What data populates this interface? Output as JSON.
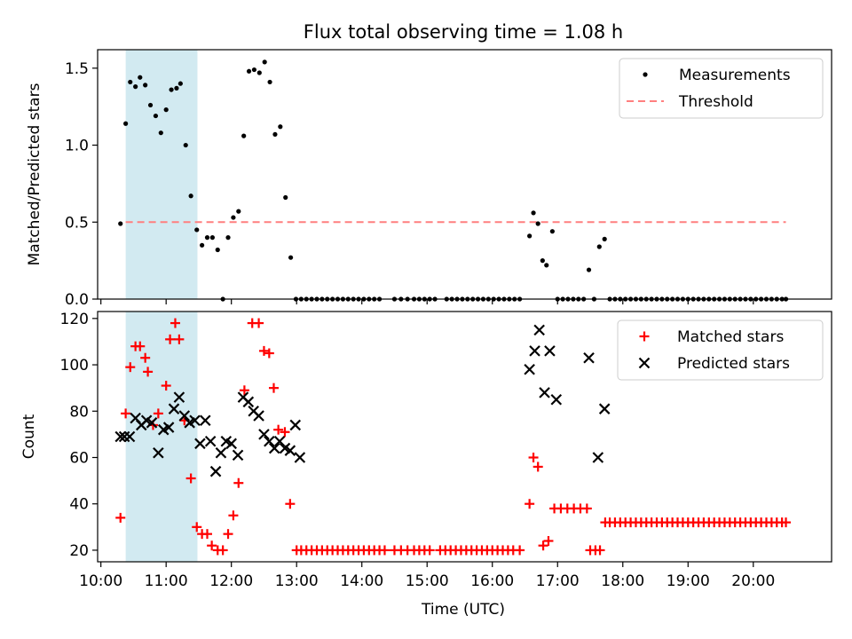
{
  "title": "Flux total observing time = 1.08 h",
  "colors": {
    "band": "#add8e6",
    "threshold": "#ff7f7f",
    "matched": "#ff0000",
    "predicted": "#000000",
    "measure": "#000000"
  },
  "chart_data": [
    {
      "type": "scatter",
      "panel": "top",
      "ylabel": "Matched/Predicted stars",
      "xlim": [
        9.95,
        21.2
      ],
      "ylim": [
        0,
        1.62
      ],
      "yticks": [
        0.0,
        0.5,
        1.0,
        1.5
      ],
      "ytick_labels": [
        "0.0",
        "0.5",
        "1.0",
        "1.5"
      ],
      "span": [
        10.38,
        11.48
      ],
      "threshold": {
        "y": 0.5,
        "x": [
          10.38,
          20.5
        ],
        "label": "Threshold"
      },
      "legend": {
        "position": "top-right",
        "entries": [
          "Measurements",
          "Threshold"
        ]
      },
      "series": [
        {
          "name": "Measurements",
          "x": [
            10.3,
            10.38,
            10.45,
            10.53,
            10.6,
            10.68,
            10.76,
            10.84,
            10.92,
            11.0,
            11.08,
            11.16,
            11.22,
            11.3,
            11.38,
            11.47,
            11.55,
            11.63,
            11.71,
            11.79,
            11.87,
            11.95,
            12.03,
            12.11,
            12.19,
            12.27,
            12.35,
            12.43,
            12.51,
            12.59,
            12.67,
            12.75,
            12.83,
            12.91,
            12.99,
            13.07,
            13.15,
            13.23,
            13.31,
            13.39,
            13.47,
            13.55,
            13.63,
            13.71,
            13.79,
            13.87,
            13.95,
            14.03,
            14.11,
            14.19,
            14.27,
            14.5,
            14.6,
            14.7,
            14.8,
            14.88,
            14.96,
            15.04,
            15.12,
            15.3,
            15.38,
            15.46,
            15.54,
            15.62,
            15.7,
            15.78,
            15.86,
            15.94,
            16.02,
            16.1,
            16.18,
            16.26,
            16.34,
            16.42,
            16.57,
            16.63,
            16.7,
            16.77,
            16.83,
            16.92,
            17.0,
            17.08,
            17.16,
            17.24,
            17.32,
            17.4,
            17.48,
            17.56,
            17.64,
            17.72,
            17.8,
            17.88,
            17.96,
            18.04,
            18.12,
            18.2,
            18.28,
            18.36,
            18.44,
            18.52,
            18.6,
            18.68,
            18.76,
            18.84,
            18.92,
            19.0,
            19.08,
            19.16,
            19.24,
            19.32,
            19.4,
            19.48,
            19.56,
            19.64,
            19.72,
            19.8,
            19.88,
            19.96,
            20.04,
            20.12,
            20.2,
            20.28,
            20.36,
            20.44,
            20.5
          ],
          "y": [
            0.49,
            1.14,
            1.41,
            1.38,
            1.44,
            1.39,
            1.26,
            1.19,
            1.08,
            1.23,
            1.36,
            1.37,
            1.4,
            1.0,
            0.67,
            0.45,
            0.35,
            0.4,
            0.4,
            0.32,
            0.0,
            0.4,
            0.53,
            0.57,
            1.06,
            1.48,
            1.49,
            1.47,
            1.54,
            1.41,
            1.07,
            1.12,
            0.66,
            0.27,
            0.0,
            0.0,
            0.0,
            0.0,
            0.0,
            0.0,
            0.0,
            0.0,
            0.0,
            0.0,
            0.0,
            0.0,
            0.0,
            0.0,
            0.0,
            0.0,
            0.0,
            0.0,
            0.0,
            0.0,
            0.0,
            0.0,
            0.0,
            0.0,
            0.0,
            0.0,
            0.0,
            0.0,
            0.0,
            0.0,
            0.0,
            0.0,
            0.0,
            0.0,
            0.0,
            0.0,
            0.0,
            0.0,
            0.0,
            0.0,
            0.41,
            0.56,
            0.49,
            0.25,
            0.22,
            0.44,
            0.0,
            0.0,
            0.0,
            0.0,
            0.0,
            0.0,
            0.19,
            0.0,
            0.34,
            0.39,
            0.0,
            0.0,
            0.0,
            0.0,
            0.0,
            0.0,
            0.0,
            0.0,
            0.0,
            0.0,
            0.0,
            0.0,
            0.0,
            0.0,
            0.0,
            0.0,
            0.0,
            0.0,
            0.0,
            0.0,
            0.0,
            0.0,
            0.0,
            0.0,
            0.0,
            0.0,
            0.0,
            0.0,
            0.0,
            0.0,
            0.0,
            0.0,
            0.0,
            0.0,
            0.0
          ]
        }
      ]
    },
    {
      "type": "scatter",
      "panel": "bottom",
      "xlabel": "Time (UTC)",
      "ylabel": "Count",
      "xlim": [
        9.95,
        21.2
      ],
      "ylim": [
        15,
        123
      ],
      "yticks": [
        20,
        40,
        60,
        80,
        100,
        120
      ],
      "ytick_labels": [
        "20",
        "40",
        "60",
        "80",
        "100",
        "120"
      ],
      "xticks": [
        10,
        11,
        12,
        13,
        14,
        15,
        16,
        17,
        18,
        19,
        20
      ],
      "xtick_labels": [
        "10:00",
        "11:00",
        "12:00",
        "13:00",
        "14:00",
        "15:00",
        "16:00",
        "17:00",
        "18:00",
        "19:00",
        "20:00"
      ],
      "span": [
        10.38,
        11.48
      ],
      "legend": {
        "position": "top-right",
        "entries": [
          "Matched stars",
          "Predicted stars"
        ]
      },
      "series": [
        {
          "name": "Matched stars",
          "x": [
            10.3,
            10.38,
            10.45,
            10.53,
            10.6,
            10.68,
            10.72,
            10.8,
            10.88,
            11.0,
            11.06,
            11.14,
            11.2,
            11.28,
            11.38,
            11.47,
            11.55,
            11.63,
            11.7,
            11.79,
            11.87,
            11.95,
            12.03,
            12.11,
            12.2,
            12.32,
            12.42,
            12.5,
            12.58,
            12.65,
            12.72,
            12.82,
            12.9,
            13.0,
            13.07,
            13.15,
            13.23,
            13.31,
            13.39,
            13.47,
            13.55,
            13.63,
            13.71,
            13.79,
            13.87,
            13.95,
            14.03,
            14.11,
            14.19,
            14.27,
            14.35,
            14.5,
            14.6,
            14.7,
            14.8,
            14.88,
            14.96,
            15.04,
            15.2,
            15.28,
            15.36,
            15.44,
            15.52,
            15.6,
            15.68,
            15.76,
            15.84,
            15.92,
            16.0,
            16.08,
            16.16,
            16.24,
            16.32,
            16.42,
            16.57,
            16.63,
            16.7,
            16.78,
            16.86,
            16.95,
            17.05,
            17.15,
            17.25,
            17.35,
            17.45,
            17.5,
            17.58,
            17.65,
            17.73,
            17.8,
            17.88,
            17.96,
            18.04,
            18.12,
            18.2,
            18.28,
            18.36,
            18.44,
            18.52,
            18.6,
            18.68,
            18.76,
            18.84,
            18.92,
            19.0,
            19.08,
            19.16,
            19.24,
            19.32,
            19.4,
            19.48,
            19.56,
            19.64,
            19.72,
            19.8,
            19.88,
            19.96,
            20.04,
            20.12,
            20.2,
            20.28,
            20.36,
            20.44,
            20.5
          ],
          "y": [
            34,
            79,
            99,
            108,
            108,
            103,
            97,
            74,
            79,
            91,
            111,
            118,
            111,
            76,
            51,
            30,
            27,
            27,
            22,
            20,
            20,
            27,
            35,
            49,
            89,
            118,
            118,
            106,
            105,
            90,
            72,
            71,
            40,
            20,
            20,
            20,
            20,
            20,
            20,
            20,
            20,
            20,
            20,
            20,
            20,
            20,
            20,
            20,
            20,
            20,
            20,
            20,
            20,
            20,
            20,
            20,
            20,
            20,
            20,
            20,
            20,
            20,
            20,
            20,
            20,
            20,
            20,
            20,
            20,
            20,
            20,
            20,
            20,
            20,
            40,
            60,
            56,
            22,
            24,
            38,
            38,
            38,
            38,
            38,
            38,
            20,
            20,
            20,
            32,
            32,
            32,
            32,
            32,
            32,
            32,
            32,
            32,
            32,
            32,
            32,
            32,
            32,
            32,
            32,
            32,
            32,
            32,
            32,
            32,
            32,
            32,
            32,
            32,
            32,
            32,
            32,
            32,
            32,
            32,
            32,
            32,
            32,
            32,
            32
          ]
        },
        {
          "name": "Predicted stars",
          "x": [
            10.3,
            10.36,
            10.44,
            10.53,
            10.62,
            10.7,
            10.78,
            10.88,
            10.96,
            11.04,
            11.12,
            11.2,
            11.28,
            11.36,
            11.44,
            11.52,
            11.6,
            11.68,
            11.76,
            11.84,
            11.92,
            12.0,
            12.1,
            12.18,
            12.26,
            12.34,
            12.42,
            12.5,
            12.58,
            12.66,
            12.74,
            12.82,
            12.9,
            12.98,
            13.05,
            16.57,
            16.65,
            16.72,
            16.8,
            16.88,
            16.98,
            17.48,
            17.62,
            17.72
          ],
          "y": [
            69,
            69,
            69,
            77,
            74,
            76,
            75,
            62,
            72,
            73,
            81,
            86,
            78,
            75,
            76,
            66,
            76,
            67,
            54,
            62,
            67,
            66,
            61,
            86,
            84,
            80,
            78,
            70,
            67,
            64,
            67,
            64,
            63,
            74,
            60,
            98,
            106,
            115,
            88,
            106,
            85,
            103,
            60,
            81
          ]
        }
      ]
    }
  ]
}
